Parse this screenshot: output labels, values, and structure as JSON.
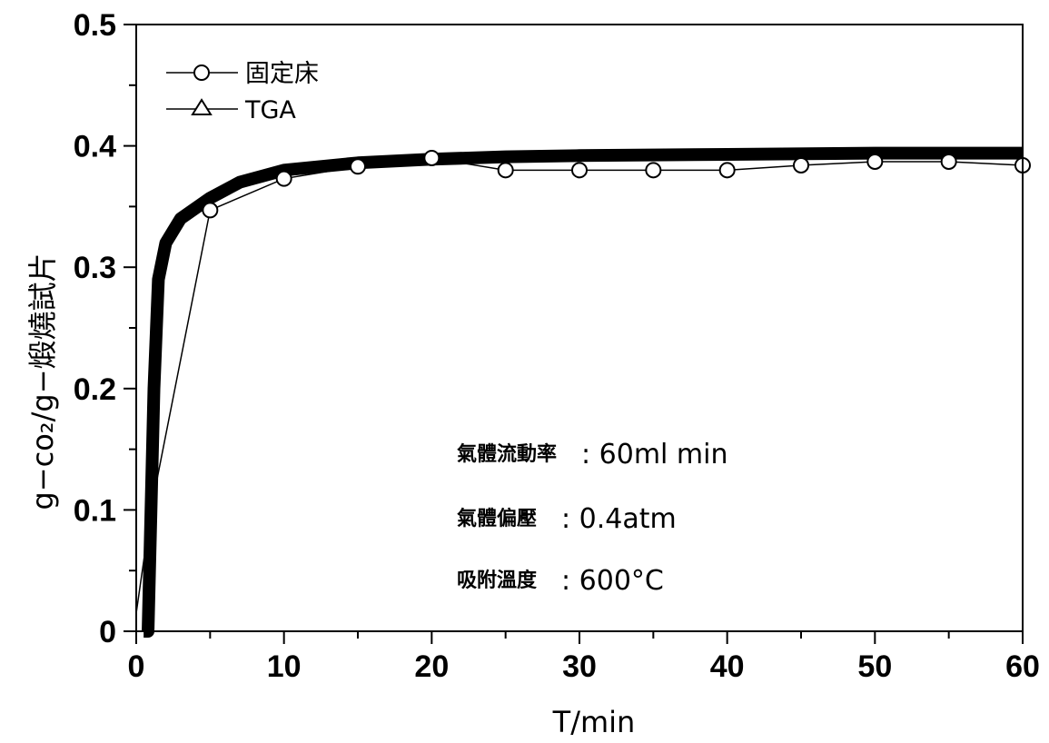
{
  "chart_data": {
    "type": "line",
    "xlabel": "T/min",
    "ylabel": "g−co₂/g−煅燒試片",
    "xlim": [
      0,
      60
    ],
    "ylim": [
      0,
      0.5
    ],
    "x_ticks": [
      "0",
      "10",
      "20",
      "30",
      "40",
      "50",
      "60"
    ],
    "y_ticks": [
      "0",
      "0.1",
      "0.2",
      "0.3",
      "0.4",
      "0.5"
    ],
    "legend_placement": "top-left",
    "series": [
      {
        "name": "固定床",
        "marker": "circle",
        "x": [
          0,
          1,
          5,
          10,
          15,
          20,
          25,
          30,
          35,
          40,
          45,
          50,
          55,
          60
        ],
        "y": [
          0.015,
          0.1,
          0.347,
          0.373,
          0.383,
          0.39,
          0.38,
          0.38,
          0.38,
          0.38,
          0.384,
          0.387,
          0.387,
          0.384
        ]
      },
      {
        "name": "TGA",
        "marker": "triangle",
        "x": [
          0.5,
          0.8,
          1.0,
          1.2,
          1.5,
          2,
          3,
          5,
          7,
          10,
          15,
          20,
          25,
          30,
          40,
          50,
          60
        ],
        "y": [
          0,
          0,
          0.1,
          0.2,
          0.29,
          0.32,
          0.34,
          0.357,
          0.37,
          0.38,
          0.386,
          0.389,
          0.391,
          0.392,
          0.393,
          0.394,
          0.394
        ]
      }
    ],
    "annotations": [
      {
        "label": "氣體流動率",
        "value": ": 60ml  min"
      },
      {
        "label": "氣體偏壓",
        "value": ": 0.4atm"
      },
      {
        "label": "吸附溫度",
        "value": ": 600°C"
      }
    ]
  }
}
